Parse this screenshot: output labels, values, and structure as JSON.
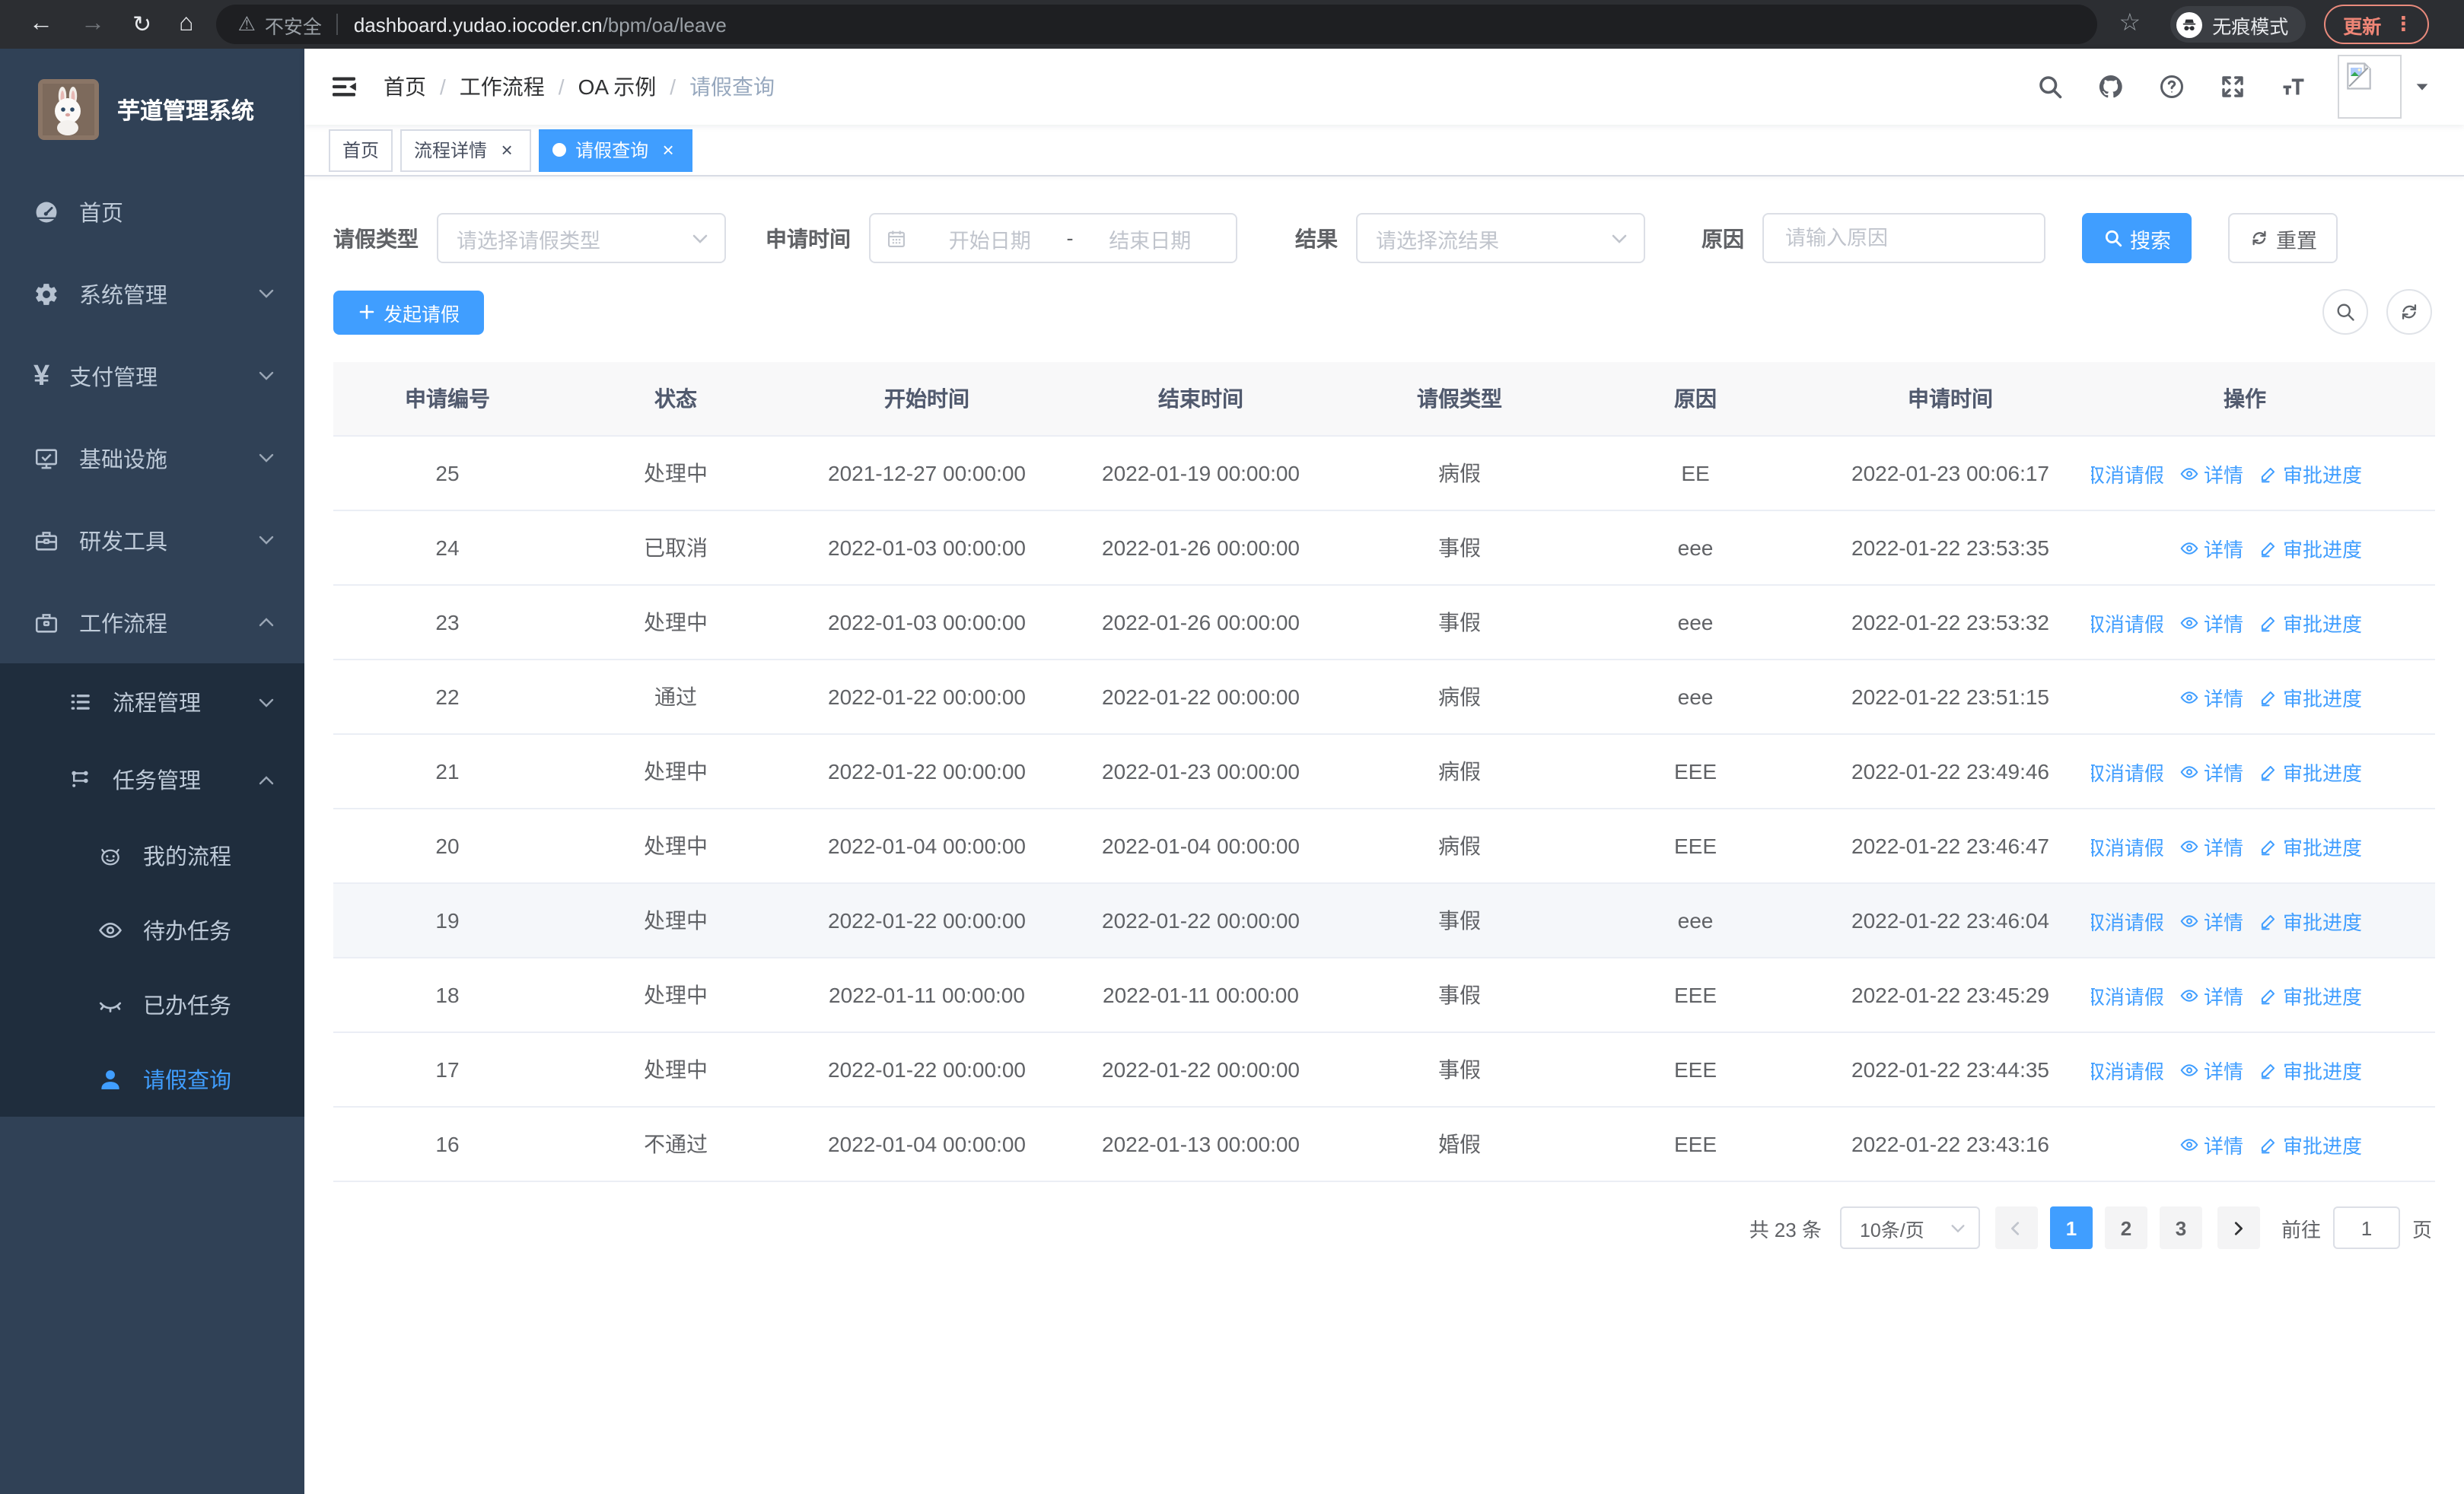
{
  "browser": {
    "security_label": "不安全",
    "url_host": "dashboard.yudao.iocoder.cn",
    "url_path": "/bpm/oa/leave",
    "incognito_label": "无痕模式",
    "update_label": "更新"
  },
  "sidebar": {
    "title": "芋道管理系统",
    "items": [
      {
        "name": "home",
        "icon": "dashboard-icon",
        "label": "首页",
        "level": 1,
        "sub": false,
        "chevron": null,
        "active": false
      },
      {
        "name": "system",
        "icon": "gear-icon",
        "label": "系统管理",
        "level": 1,
        "sub": false,
        "chevron": "down",
        "active": false
      },
      {
        "name": "payment",
        "icon": "yen-icon",
        "label": "支付管理",
        "level": 1,
        "sub": false,
        "chevron": "down",
        "active": false
      },
      {
        "name": "infrastructure",
        "icon": "monitor-icon",
        "label": "基础设施",
        "level": 1,
        "sub": false,
        "chevron": "down",
        "active": false
      },
      {
        "name": "dev-tools",
        "icon": "toolbox-icon",
        "label": "研发工具",
        "level": 1,
        "sub": false,
        "chevron": "down",
        "active": false
      },
      {
        "name": "workflow",
        "icon": "briefcase-icon",
        "label": "工作流程",
        "level": 1,
        "sub": false,
        "chevron": "up",
        "active": false
      },
      {
        "name": "process-management",
        "icon": "list-icon",
        "label": "流程管理",
        "level": 2,
        "sub": true,
        "chevron": "down",
        "active": false
      },
      {
        "name": "task-management",
        "icon": "flow-icon",
        "label": "任务管理",
        "level": 2,
        "sub": true,
        "chevron": "up",
        "active": false
      },
      {
        "name": "my-process",
        "icon": "robot-icon",
        "label": "我的流程",
        "level": 3,
        "sub": true,
        "chevron": null,
        "active": false
      },
      {
        "name": "todo-tasks",
        "icon": "eye-icon",
        "label": "待办任务",
        "level": 3,
        "sub": true,
        "chevron": null,
        "active": false
      },
      {
        "name": "done-tasks",
        "icon": "eye-closed-icon",
        "label": "已办任务",
        "level": 3,
        "sub": true,
        "chevron": null,
        "active": false
      },
      {
        "name": "leave-query",
        "icon": "user-icon",
        "label": "请假查询",
        "level": 3,
        "sub": true,
        "chevron": null,
        "active": true
      }
    ]
  },
  "breadcrumb": [
    "首页",
    "工作流程",
    "OA 示例",
    "请假查询"
  ],
  "tabs": [
    {
      "name": "home",
      "label": "首页",
      "closable": false,
      "active": false
    },
    {
      "name": "process-detail",
      "label": "流程详情",
      "closable": true,
      "active": false
    },
    {
      "name": "leave-query",
      "label": "请假查询",
      "closable": true,
      "active": true
    }
  ],
  "filters": {
    "leave_type_label": "请假类型",
    "leave_type_placeholder": "请选择请假类型",
    "apply_time_label": "申请时间",
    "start_date_placeholder": "开始日期",
    "range_separator": "-",
    "end_date_placeholder": "结束日期",
    "result_label": "结果",
    "result_placeholder": "请选择流结果",
    "reason_label": "原因",
    "reason_placeholder": "请输入原因",
    "search_label": "搜索",
    "reset_label": "重置"
  },
  "toolbar": {
    "create_label": "发起请假"
  },
  "table": {
    "columns": [
      "申请编号",
      "状态",
      "开始时间",
      "结束时间",
      "请假类型",
      "原因",
      "申请时间",
      "操作"
    ],
    "action_labels": {
      "cancel": "取消请假",
      "detail": "详情",
      "progress": "审批进度"
    },
    "rows": [
      {
        "id": "25",
        "status": "处理中",
        "start": "2021-12-27 00:00:00",
        "end": "2022-01-19 00:00:00",
        "type": "病假",
        "reason": "EE",
        "applyTime": "2022-01-23 00:06:17",
        "actions": [
          "cancel",
          "detail",
          "progress"
        ],
        "hover": false
      },
      {
        "id": "24",
        "status": "已取消",
        "start": "2022-01-03 00:00:00",
        "end": "2022-01-26 00:00:00",
        "type": "事假",
        "reason": "eee",
        "applyTime": "2022-01-22 23:53:35",
        "actions": [
          "detail",
          "progress"
        ],
        "hover": false
      },
      {
        "id": "23",
        "status": "处理中",
        "start": "2022-01-03 00:00:00",
        "end": "2022-01-26 00:00:00",
        "type": "事假",
        "reason": "eee",
        "applyTime": "2022-01-22 23:53:32",
        "actions": [
          "cancel",
          "detail",
          "progress"
        ],
        "hover": false
      },
      {
        "id": "22",
        "status": "通过",
        "start": "2022-01-22 00:00:00",
        "end": "2022-01-22 00:00:00",
        "type": "病假",
        "reason": "eee",
        "applyTime": "2022-01-22 23:51:15",
        "actions": [
          "detail",
          "progress"
        ],
        "hover": false
      },
      {
        "id": "21",
        "status": "处理中",
        "start": "2022-01-22 00:00:00",
        "end": "2022-01-23 00:00:00",
        "type": "病假",
        "reason": "EEE",
        "applyTime": "2022-01-22 23:49:46",
        "actions": [
          "cancel",
          "detail",
          "progress"
        ],
        "hover": false
      },
      {
        "id": "20",
        "status": "处理中",
        "start": "2022-01-04 00:00:00",
        "end": "2022-01-04 00:00:00",
        "type": "病假",
        "reason": "EEE",
        "applyTime": "2022-01-22 23:46:47",
        "actions": [
          "cancel",
          "detail",
          "progress"
        ],
        "hover": false
      },
      {
        "id": "19",
        "status": "处理中",
        "start": "2022-01-22 00:00:00",
        "end": "2022-01-22 00:00:00",
        "type": "事假",
        "reason": "eee",
        "applyTime": "2022-01-22 23:46:04",
        "actions": [
          "cancel",
          "detail",
          "progress"
        ],
        "hover": true
      },
      {
        "id": "18",
        "status": "处理中",
        "start": "2022-01-11 00:00:00",
        "end": "2022-01-11 00:00:00",
        "type": "事假",
        "reason": "EEE",
        "applyTime": "2022-01-22 23:45:29",
        "actions": [
          "cancel",
          "detail",
          "progress"
        ],
        "hover": false
      },
      {
        "id": "17",
        "status": "处理中",
        "start": "2022-01-22 00:00:00",
        "end": "2022-01-22 00:00:00",
        "type": "事假",
        "reason": "EEE",
        "applyTime": "2022-01-22 23:44:35",
        "actions": [
          "cancel",
          "detail",
          "progress"
        ],
        "hover": false
      },
      {
        "id": "16",
        "status": "不通过",
        "start": "2022-01-04 00:00:00",
        "end": "2022-01-13 00:00:00",
        "type": "婚假",
        "reason": "EEE",
        "applyTime": "2022-01-22 23:43:16",
        "actions": [
          "detail",
          "progress"
        ],
        "hover": false
      }
    ]
  },
  "pagination": {
    "total_label": "共 23 条",
    "page_size_label": "10条/页",
    "pages": [
      "1",
      "2",
      "3"
    ],
    "active_page": "1",
    "goto_label": "前往",
    "goto_value": "1",
    "goto_unit": "页"
  },
  "colors": {
    "accent": "#409eff",
    "sidebar_bg": "#304156",
    "submenu_bg": "#1f2d3d"
  }
}
